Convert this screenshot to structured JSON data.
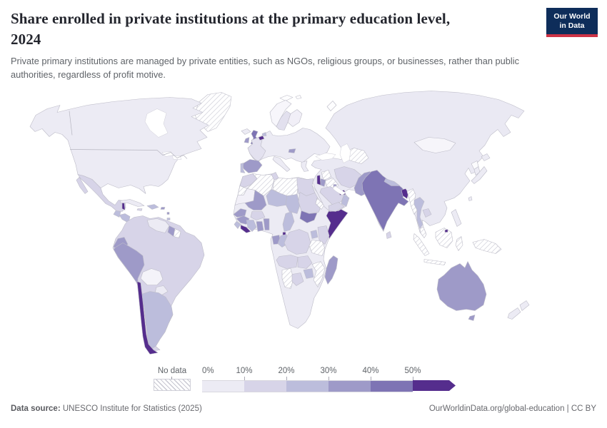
{
  "header": {
    "title_line1": "Share enrolled in private institutions at the primary education level,",
    "title_line2": "2024",
    "subtitle": "Private primary institutions are managed by private entities, such as NGOs, religious groups, or businesses, rather than public authorities, regardless of profit motive.",
    "logo": {
      "line1": "Our World",
      "line2": "in Data",
      "bg_color": "#0e2d5a",
      "accent_color": "#cd3346"
    }
  },
  "legend": {
    "no_data_label": "No data",
    "tick_labels": [
      "0%",
      "10%",
      "20%",
      "30%",
      "40%",
      "50%"
    ],
    "bin_colors": {
      "bin0": "#ecebf4",
      "bin1": "#d7d4e8",
      "bin2": "#bcbddc",
      "bin3": "#9e9ac8",
      "bin4": "#7e74b4",
      "bin5": "#552d8d"
    },
    "no_data_pattern": "diagonal-hatch"
  },
  "footer": {
    "source_label": "Data source:",
    "source_text": " UNESCO Institute for Statistics (2025)",
    "attribution": "OurWorldinData.org/global-education | CC BY"
  },
  "map": {
    "ocean_color": "#ffffff",
    "border_color": "#bdbcc8",
    "countries": [
      {
        "id": "greenland",
        "fill": "hatch"
      },
      {
        "id": "north-america",
        "fill": "bin0"
      },
      {
        "id": "mexico",
        "fill": "bin1"
      },
      {
        "id": "guatemala",
        "fill": "bin2"
      },
      {
        "id": "belize",
        "fill": "bin5"
      },
      {
        "id": "honduras-nicaragua",
        "fill": "bin2"
      },
      {
        "id": "costa-rica-panama",
        "fill": "bin1"
      },
      {
        "id": "cuba",
        "fill": "bin0"
      },
      {
        "id": "hispaniola",
        "fill": "bin2"
      },
      {
        "id": "jamaica",
        "fill": "bin1"
      },
      {
        "id": "puerto-rico",
        "fill": "bin3"
      },
      {
        "id": "lesser-antilles",
        "fill": "bin3"
      },
      {
        "id": "trinidad",
        "fill": "bin2"
      },
      {
        "id": "south-america",
        "fill": "bin1"
      },
      {
        "id": "venezuela",
        "fill": "bin0"
      },
      {
        "id": "guyana",
        "fill": "bin3"
      },
      {
        "id": "suriname",
        "fill": "hatch"
      },
      {
        "id": "ecuador",
        "fill": "bin3"
      },
      {
        "id": "peru",
        "fill": "bin3"
      },
      {
        "id": "bolivia",
        "fill": "#f4f3f9"
      },
      {
        "id": "paraguay",
        "fill": "bin0"
      },
      {
        "id": "argentina",
        "fill": "bin2"
      },
      {
        "id": "chile",
        "fill": "bin5"
      },
      {
        "id": "iceland",
        "fill": "bin0"
      },
      {
        "id": "uk",
        "fill": "bin4"
      },
      {
        "id": "ireland",
        "fill": "bin3"
      },
      {
        "id": "norway",
        "fill": "#f7f6fb"
      },
      {
        "id": "sweden",
        "fill": "#e2e0ee"
      },
      {
        "id": "finland",
        "fill": "#f1eff7"
      },
      {
        "id": "europe-mainland",
        "fill": "bin0"
      },
      {
        "id": "france",
        "fill": "#e3e1ef"
      },
      {
        "id": "belgium",
        "fill": "bin5"
      },
      {
        "id": "netherlands",
        "fill": "bin2"
      },
      {
        "id": "spain",
        "fill": "bin3"
      },
      {
        "id": "portugal",
        "fill": "bin2"
      },
      {
        "id": "italy",
        "fill": "bin0"
      },
      {
        "id": "greece",
        "fill": "bin0"
      },
      {
        "id": "hungary",
        "fill": "bin3"
      },
      {
        "id": "africa",
        "fill": "bin0"
      },
      {
        "id": "morocco",
        "fill": "bin1"
      },
      {
        "id": "western-sahara",
        "fill": "hatch"
      },
      {
        "id": "algeria",
        "fill": "hatch"
      },
      {
        "id": "tunisia",
        "fill": "bin1"
      },
      {
        "id": "libya",
        "fill": "hatch"
      },
      {
        "id": "egypt",
        "fill": "bin1"
      },
      {
        "id": "mauritania",
        "fill": "#f2f0f8"
      },
      {
        "id": "mali",
        "fill": "bin3"
      },
      {
        "id": "niger",
        "fill": "bin2"
      },
      {
        "id": "chad",
        "fill": "bin2"
      },
      {
        "id": "sudan",
        "fill": "bin1"
      },
      {
        "id": "eritrea",
        "fill": "hatch"
      },
      {
        "id": "somalia",
        "fill": "bin5"
      },
      {
        "id": "south-sudan",
        "fill": "bin4"
      },
      {
        "id": "senegal",
        "fill": "bin3"
      },
      {
        "id": "guinea",
        "fill": "bin3"
      },
      {
        "id": "sierra-leone",
        "fill": "bin2"
      },
      {
        "id": "liberia",
        "fill": "bin5"
      },
      {
        "id": "cote-divoire",
        "fill": "bin2"
      },
      {
        "id": "ghana",
        "fill": "bin3"
      },
      {
        "id": "togo-benin",
        "fill": "bin3"
      },
      {
        "id": "burkina-faso",
        "fill": "bin1"
      },
      {
        "id": "cameroon",
        "fill": "bin2"
      },
      {
        "id": "equatorial-guinea",
        "fill": "bin5"
      },
      {
        "id": "gabon",
        "fill": "bin3"
      },
      {
        "id": "congo",
        "fill": "bin2"
      },
      {
        "id": "drc",
        "fill": "bin1"
      },
      {
        "id": "uganda",
        "fill": "bin2"
      },
      {
        "id": "kenya",
        "fill": "bin1"
      },
      {
        "id": "tanzania",
        "fill": "hatch"
      },
      {
        "id": "angola",
        "fill": "bin1"
      },
      {
        "id": "zambia",
        "fill": "bin1"
      },
      {
        "id": "mozambique",
        "fill": "hatch"
      },
      {
        "id": "zimbabwe",
        "fill": "bin2"
      },
      {
        "id": "namibia",
        "fill": "hatch"
      },
      {
        "id": "botswana",
        "fill": "bin1"
      },
      {
        "id": "madagascar",
        "fill": "bin3"
      },
      {
        "id": "asia",
        "fill": "#eae9f3"
      },
      {
        "id": "svalbard",
        "fill": "#fdfdfe"
      },
      {
        "id": "novaya-zemlya",
        "fill": "#fdfdfe"
      },
      {
        "id": "syria",
        "fill": "hatch"
      },
      {
        "id": "iraq",
        "fill": "hatch"
      },
      {
        "id": "israel-lebanon",
        "fill": "bin5"
      },
      {
        "id": "jordan",
        "fill": "bin3"
      },
      {
        "id": "saudi-arabia",
        "fill": "bin1"
      },
      {
        "id": "yemen",
        "fill": "bin1"
      },
      {
        "id": "oman",
        "fill": "bin2"
      },
      {
        "id": "uae",
        "fill": "bin5"
      },
      {
        "id": "kuwait",
        "fill": "bin3"
      },
      {
        "id": "iran",
        "fill": "bin1"
      },
      {
        "id": "turkmenistan-uzbekistan",
        "fill": "hatch"
      },
      {
        "id": "pakistan",
        "fill": "bin3"
      },
      {
        "id": "india",
        "fill": "bin4"
      },
      {
        "id": "nepal",
        "fill": "bin2"
      },
      {
        "id": "bangladesh",
        "fill": "bin5"
      },
      {
        "id": "sri-lanka",
        "fill": "bin1"
      },
      {
        "id": "myanmar",
        "fill": "hatch"
      },
      {
        "id": "thailand",
        "fill": "bin2"
      },
      {
        "id": "cambodia",
        "fill": "bin1"
      },
      {
        "id": "malay-peninsula",
        "fill": "hatch"
      },
      {
        "id": "sumatra",
        "fill": "hatch"
      },
      {
        "id": "java",
        "fill": "hatch"
      },
      {
        "id": "borneo",
        "fill": "hatch"
      },
      {
        "id": "sulawesi",
        "fill": "hatch"
      },
      {
        "id": "new-guinea",
        "fill": "hatch"
      },
      {
        "id": "philippines",
        "fill": "bin0"
      },
      {
        "id": "brunei",
        "fill": "bin5"
      },
      {
        "id": "mongolia",
        "fill": "#f6f5fa"
      },
      {
        "id": "north-korea",
        "fill": "#fbfbfd"
      },
      {
        "id": "south-korea",
        "fill": "bin0"
      },
      {
        "id": "japan",
        "fill": "bin0"
      },
      {
        "id": "taiwan",
        "fill": "bin0"
      },
      {
        "id": "australia",
        "fill": "bin3"
      },
      {
        "id": "tasmania",
        "fill": "bin3"
      },
      {
        "id": "new-zealand",
        "fill": "bin0"
      }
    ]
  }
}
